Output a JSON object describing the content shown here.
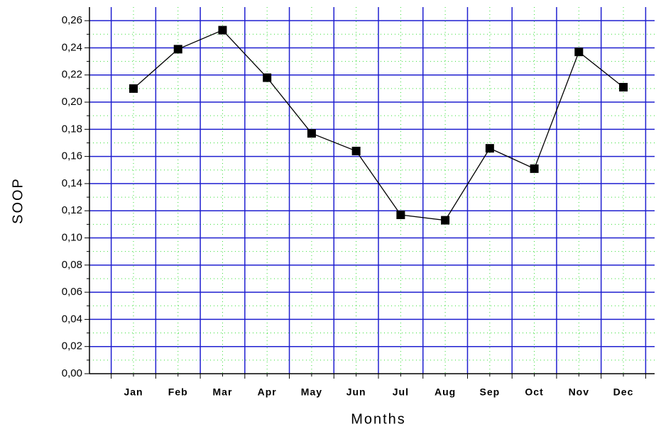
{
  "chart_data": {
    "type": "line",
    "x_label": "Months",
    "y_label": "SOOP",
    "categories": [
      "Jan",
      "Feb",
      "Mar",
      "Apr",
      "May",
      "Jun",
      "Jul",
      "Aug",
      "Sep",
      "Oct",
      "Nov",
      "Dec"
    ],
    "series": [
      {
        "color": "#000000",
        "values": [
          0.21,
          0.239,
          0.253,
          0.218,
          0.177,
          0.164,
          0.117,
          0.113,
          0.166,
          0.151,
          0.237,
          0.211
        ]
      }
    ],
    "ylim": [
      0,
      0.27
    ],
    "yticks": [
      {
        "value": 0,
        "label": "0,00"
      },
      {
        "value": 0.02,
        "label": "0,02"
      },
      {
        "value": 0.04,
        "label": "0,04"
      },
      {
        "value": 0.06,
        "label": "0,06"
      },
      {
        "value": 0.08,
        "label": "0,08"
      },
      {
        "value": 0.1,
        "label": "0,10"
      },
      {
        "value": 0.12,
        "label": "0,12"
      },
      {
        "value": 0.14,
        "label": "0,14"
      },
      {
        "value": 0.16,
        "label": "0,16"
      },
      {
        "value": 0.18,
        "label": "0,18"
      },
      {
        "value": 0.2,
        "label": "0,20"
      },
      {
        "value": 0.22,
        "label": "0,22"
      },
      {
        "value": 0.24,
        "label": "0,24"
      },
      {
        "value": 0.26,
        "label": "0,26"
      }
    ],
    "grid": true,
    "grid_color": "#1f1fd0",
    "minor_grid_color": "#33dd33",
    "background": "#ffffff"
  }
}
